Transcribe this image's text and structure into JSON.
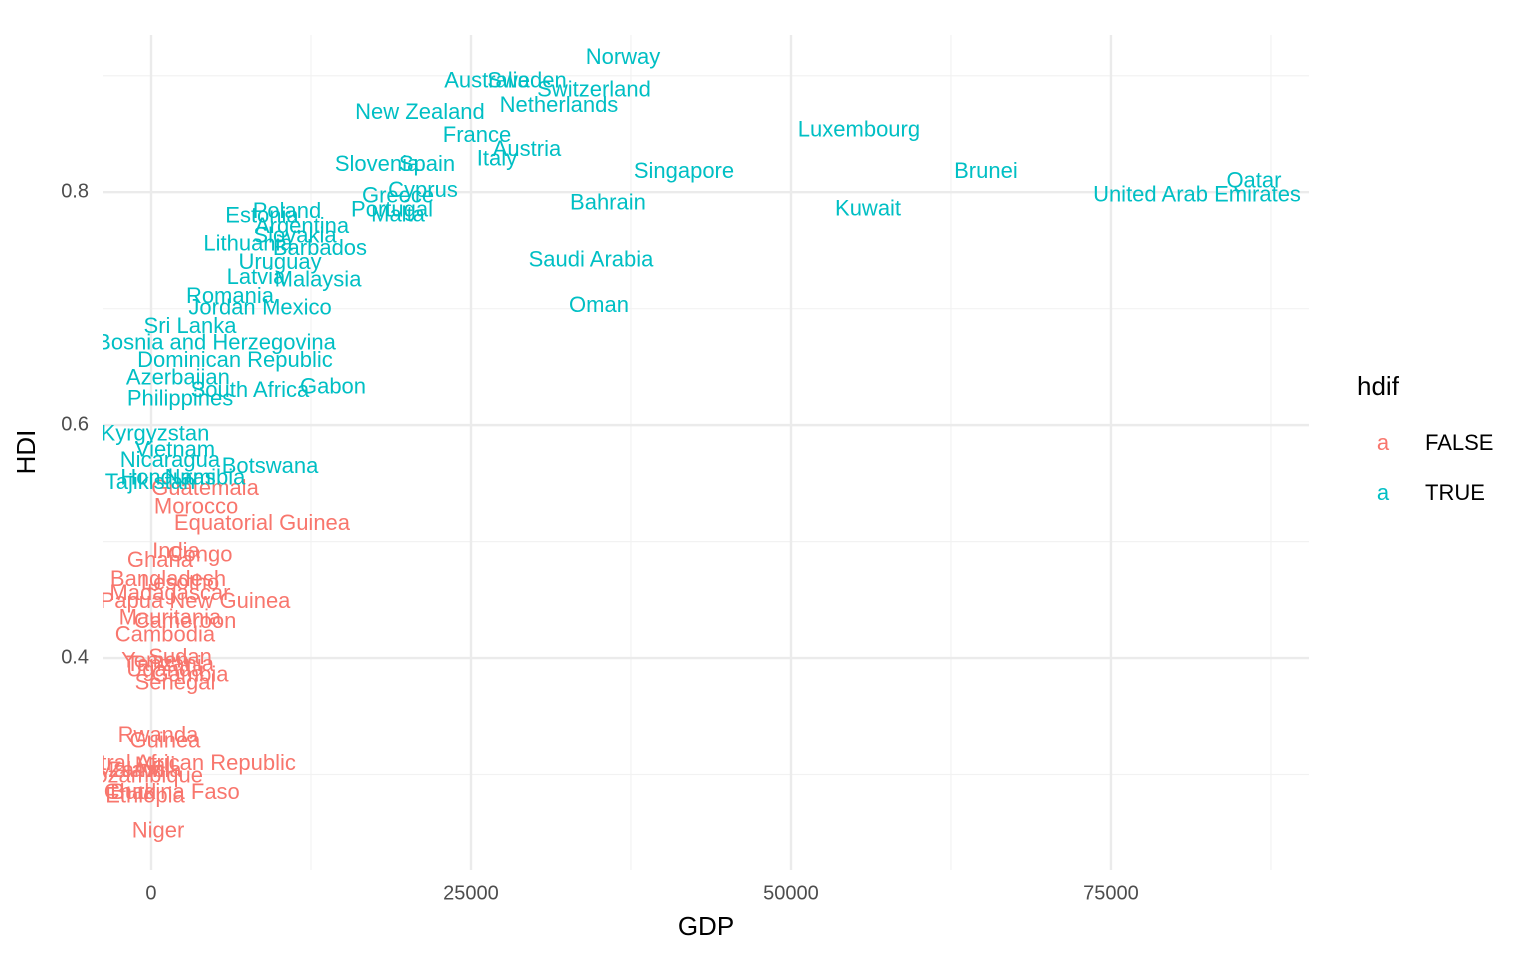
{
  "chart_data": {
    "type": "scatter",
    "x_label": "GDP",
    "y_label": "HDI",
    "legend_title": "hdif",
    "legend_key_glyph": "a",
    "xlim": [
      -3750,
      90470
    ],
    "ylim": [
      0.218,
      0.935
    ],
    "xticks": [
      0,
      25000,
      50000,
      75000
    ],
    "yticks": [
      0.4,
      0.6,
      0.8
    ],
    "grid": true,
    "legend": "right",
    "series": [
      {
        "name": "FALSE",
        "color": "#f8766d",
        "labels": [
          "Guatemala",
          "Morocco",
          "Equatorial Guinea",
          "India",
          "Congo",
          "Ghana",
          "Bangladesh",
          "Lesotho",
          "Papua New Guinea",
          "Madagascar",
          "Mauritania",
          "Cameroon",
          "Cambodia",
          "Sudan",
          "Yemen",
          "Tanzania",
          "Uganda",
          "Gambia",
          "Senegal",
          "Rwanda",
          "Guinea",
          "Central African Republic",
          "Mali",
          "Malawi",
          "Zambia",
          "Mozambique",
          "Burkina Faso",
          "Chad",
          "Ethiopia",
          "Niger"
        ],
        "x": [
          4220,
          3520,
          8670,
          1950,
          3830,
          700,
          1330,
          2270,
          3440,
          1480,
          1480,
          2660,
          1090,
          2270,
          310,
          1480,
          1090,
          3050,
          1875,
          550,
          1090,
          2100,
          310,
          -1640,
          -470,
          -860,
          1875,
          -1640,
          -470,
          550
        ],
        "values": [
          0.545,
          0.529,
          0.515,
          0.491,
          0.488,
          0.483,
          0.467,
          0.464,
          0.448,
          0.455,
          0.434,
          0.431,
          0.419,
          0.4,
          0.397,
          0.394,
          0.389,
          0.385,
          0.378,
          0.333,
          0.328,
          0.309,
          0.307,
          0.303,
          0.303,
          0.298,
          0.284,
          0.284,
          0.281,
          0.251
        ]
      },
      {
        "name": "TRUE",
        "color": "#00bfc4",
        "labels": [
          "Norway",
          "Switzerland",
          "Australia",
          "Sweden",
          "Netherlands",
          "New Zealand",
          "Luxembourg",
          "Austria",
          "Italy",
          "France",
          "Slovenia",
          "Spain",
          "Singapore",
          "Brunei",
          "Qatar",
          "United Arab Emirates",
          "Cyprus",
          "Greece",
          "Bahrain",
          "Kuwait",
          "Portugal",
          "Malta",
          "Poland",
          "Estonia",
          "Argentina",
          "Slovakia",
          "Lithuania",
          "Barbados",
          "Saudi Arabia",
          "Uruguay",
          "Latvia",
          "Malaysia",
          "Oman",
          "Romania",
          "Mexico",
          "Jordan",
          "Sri Lanka",
          "Bosnia and Herzegovina",
          "Dominican Republic",
          "Gabon",
          "South Africa",
          "Azerbaijan",
          "Philippines",
          "Kyrgyzstan",
          "Vietnam",
          "Nicaragua",
          "Botswana",
          "Honduras",
          "Tajikistan",
          "Namibia"
        ],
        "x": [
          36875,
          34610,
          26250,
          29375,
          31875,
          21015,
          55310,
          29375,
          27030,
          25470,
          17660,
          21560,
          41640,
          65230,
          86170,
          81720,
          21250,
          19300,
          35700,
          56020,
          18830,
          19300,
          10625,
          8670,
          11800,
          11250,
          7580,
          13200,
          34375,
          10080,
          8200,
          13050,
          35000,
          6170,
          11400,
          5550,
          3050,
          5080,
          6560,
          14220,
          7730,
          2100,
          2270,
          310,
          1875,
          1480,
          9300,
          1330,
          -80,
          4220
        ],
        "values": [
          0.915,
          0.887,
          0.895,
          0.895,
          0.874,
          0.868,
          0.853,
          0.836,
          0.828,
          0.848,
          0.823,
          0.823,
          0.817,
          0.817,
          0.809,
          0.797,
          0.801,
          0.796,
          0.79,
          0.785,
          0.784,
          0.78,
          0.783,
          0.779,
          0.77,
          0.762,
          0.755,
          0.751,
          0.741,
          0.739,
          0.726,
          0.724,
          0.702,
          0.71,
          0.7,
          0.7,
          0.684,
          0.67,
          0.655,
          0.632,
          0.629,
          0.64,
          0.622,
          0.592,
          0.578,
          0.569,
          0.564,
          0.554,
          0.55,
          0.554
        ]
      }
    ]
  }
}
